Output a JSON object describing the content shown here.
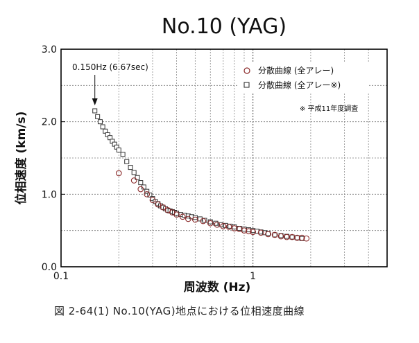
{
  "chart_data": {
    "type": "scatter",
    "title": "No.10 (YAG)",
    "xlabel": "周波数 (Hz)",
    "ylabel": "位相速度 (km/s)",
    "xscale": "log",
    "xlim": [
      0.1,
      5
    ],
    "ylim": [
      0.0,
      3.0
    ],
    "x_ticks": [
      {
        "value": 0.1,
        "label": "0.1"
      },
      {
        "value": 1,
        "label": "1"
      }
    ],
    "y_ticks": [
      {
        "value": 0.0,
        "label": "0.0"
      },
      {
        "value": 1.0,
        "label": "1.0"
      },
      {
        "value": 2.0,
        "label": "2.0"
      },
      {
        "value": 3.0,
        "label": "3.0"
      }
    ],
    "grid": true,
    "legend_position": "top-right",
    "legend_note": "※ 平成11年度調査",
    "annotation": {
      "text": "0.150Hz (6.67sec)",
      "x": 0.15,
      "y": 2.15
    },
    "series": [
      {
        "name": "分散曲線 (全アレー)",
        "marker": "circle",
        "color": "#8b2a2a",
        "x": [
          0.2,
          0.24,
          0.26,
          0.28,
          0.3,
          0.32,
          0.34,
          0.36,
          0.38,
          0.4,
          0.43,
          0.46,
          0.5,
          0.55,
          0.6,
          0.65,
          0.7,
          0.75,
          0.8,
          0.85,
          0.9,
          0.95,
          1.0,
          1.1,
          1.2,
          1.3,
          1.4,
          1.5,
          1.6,
          1.7,
          1.8,
          1.9
        ],
        "y": [
          1.29,
          1.19,
          1.07,
          1.0,
          0.92,
          0.86,
          0.82,
          0.78,
          0.75,
          0.72,
          0.69,
          0.66,
          0.65,
          0.63,
          0.6,
          0.58,
          0.56,
          0.55,
          0.53,
          0.52,
          0.5,
          0.49,
          0.48,
          0.47,
          0.45,
          0.44,
          0.42,
          0.41,
          0.41,
          0.4,
          0.4,
          0.39
        ]
      },
      {
        "name": "分散曲線 (全アレー※)",
        "marker": "square",
        "color": "#333333",
        "x": [
          0.15,
          0.155,
          0.16,
          0.165,
          0.17,
          0.175,
          0.18,
          0.185,
          0.19,
          0.195,
          0.2,
          0.21,
          0.22,
          0.23,
          0.24,
          0.25,
          0.26,
          0.27,
          0.28,
          0.29,
          0.3,
          0.31,
          0.32,
          0.33,
          0.34,
          0.35,
          0.36,
          0.37,
          0.38,
          0.39,
          0.4,
          0.42,
          0.44,
          0.46,
          0.48,
          0.5,
          0.53,
          0.56,
          0.6,
          0.64,
          0.68,
          0.72,
          0.76,
          0.8,
          0.85,
          0.9,
          0.95,
          1.0,
          1.05,
          1.1,
          1.15,
          1.2,
          1.3,
          1.4,
          1.5,
          1.6,
          1.7,
          1.8
        ],
        "y": [
          2.15,
          2.07,
          2.0,
          1.93,
          1.87,
          1.82,
          1.78,
          1.73,
          1.69,
          1.65,
          1.61,
          1.55,
          1.45,
          1.37,
          1.3,
          1.23,
          1.16,
          1.1,
          1.04,
          0.99,
          0.94,
          0.9,
          0.87,
          0.84,
          0.82,
          0.8,
          0.78,
          0.77,
          0.76,
          0.75,
          0.74,
          0.72,
          0.71,
          0.7,
          0.69,
          0.68,
          0.66,
          0.64,
          0.62,
          0.6,
          0.58,
          0.57,
          0.56,
          0.55,
          0.53,
          0.52,
          0.51,
          0.5,
          0.49,
          0.48,
          0.47,
          0.46,
          0.44,
          0.43,
          0.42,
          0.41,
          0.4,
          0.39
        ]
      }
    ]
  },
  "caption": "図 2-64(1)  No.10(YAG)地点における位相速度曲線"
}
